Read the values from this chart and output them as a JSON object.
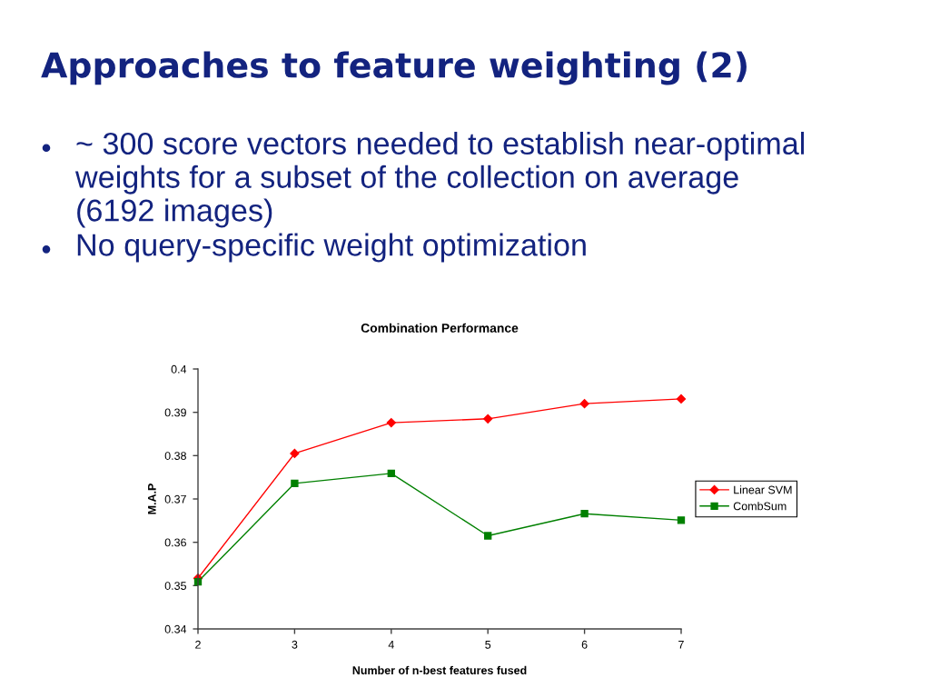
{
  "chart_data": {
    "type": "line",
    "title": "Combination Performance",
    "xlabel": "Number of n-best features fused",
    "ylabel": "M.A.P",
    "x": [
      2,
      3,
      4,
      5,
      6,
      7
    ],
    "series": [
      {
        "name": "Linear SVM",
        "color": "#ff0000",
        "marker": "diamond",
        "values": [
          0.3517,
          0.3805,
          0.3876,
          0.3885,
          0.392,
          0.3931
        ]
      },
      {
        "name": "CombSum",
        "color": "#008000",
        "marker": "square",
        "values": [
          0.3509,
          0.3736,
          0.3759,
          0.3615,
          0.3666,
          0.3651
        ]
      }
    ],
    "xlim": [
      2,
      7
    ],
    "xticks": [
      2,
      3,
      4,
      5,
      6,
      7
    ],
    "ylim": [
      0.34,
      0.4
    ],
    "yticks": [
      0.34,
      0.35,
      0.36,
      0.37,
      0.38,
      0.39,
      0.4
    ],
    "grid": false,
    "legend": "right",
    "line_style": "solid",
    "annotations": [
      "Approaches to feature weighting (2)",
      "~ 300 score vectors needed to establish near-optimal weights for a subset of the collection on average (6192 images)",
      "No query-specific weight optimization"
    ]
  }
}
